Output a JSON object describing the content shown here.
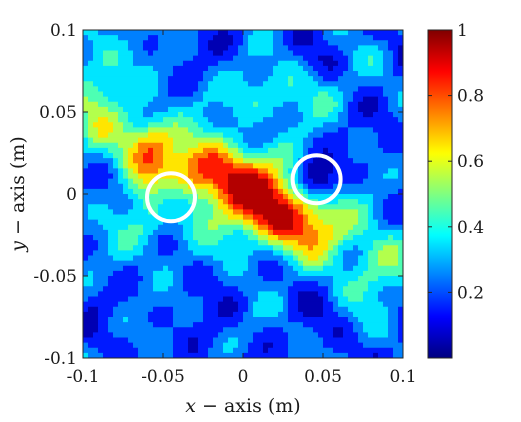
{
  "chart_data": {
    "type": "heatmap",
    "title": "",
    "xlabel": {
      "var": "x",
      "rest": " − axis (m)"
    },
    "ylabel": {
      "var": "y",
      "rest": " − axis (m)"
    },
    "xlim": [
      -0.1,
      0.1
    ],
    "ylim": [
      -0.1,
      0.1
    ],
    "x_ticks": [
      "-0.1",
      "-0.05",
      "0",
      "0.05",
      "0.1"
    ],
    "x_tick_values": [
      -0.1,
      -0.05,
      0,
      0.05,
      0.1
    ],
    "y_ticks": [
      "0.1",
      "0.05",
      "0",
      "-0.05",
      "-0.1"
    ],
    "y_tick_values": [
      0.1,
      0.05,
      0,
      -0.05,
      -0.1
    ],
    "colorbar": {
      "colormap": "jet",
      "range": [
        0,
        1
      ],
      "ticks": [
        "1",
        "0.8",
        "0.6",
        "0.4",
        "0.2"
      ],
      "tick_values": [
        1,
        0.8,
        0.6,
        0.4,
        0.2
      ],
      "levels": 10
    },
    "field_description": "contour-filled normalized intensity map, peak values near the center (x from -0.03 to 0.02, y around 0); a secondary maximum near (-0.055, 0.03)",
    "field_sources": [
      {
        "x": -0.025,
        "y": 0.012,
        "amp": 0.62,
        "sx": 0.022,
        "sy": 0.015
      },
      {
        "x": 0.013,
        "y": -0.005,
        "amp": 0.64,
        "sx": 0.02,
        "sy": 0.018
      },
      {
        "x": 0.045,
        "y": -0.02,
        "amp": 0.42,
        "sx": 0.02,
        "sy": 0.014
      },
      {
        "x": -0.058,
        "y": 0.032,
        "amp": 0.48,
        "sx": 0.012,
        "sy": 0.012
      },
      {
        "x": -0.06,
        "y": -0.015,
        "amp": 0.22,
        "sx": 0.015,
        "sy": 0.02
      },
      {
        "x": 0.085,
        "y": -0.045,
        "amp": 0.3,
        "sx": 0.015,
        "sy": 0.015
      },
      {
        "x": -0.09,
        "y": 0.06,
        "amp": 0.28,
        "sx": 0.015,
        "sy": 0.03
      },
      {
        "x": 0.02,
        "y": 0.06,
        "amp": 0.2,
        "sx": 0.03,
        "sy": 0.012
      }
    ],
    "markers": [
      {
        "shape": "circle",
        "color": "#ffffff",
        "x": -0.045,
        "y": -0.002,
        "r": 0.015
      },
      {
        "shape": "circle",
        "color": "#ffffff",
        "x": 0.046,
        "y": 0.009,
        "r": 0.015
      }
    ]
  }
}
